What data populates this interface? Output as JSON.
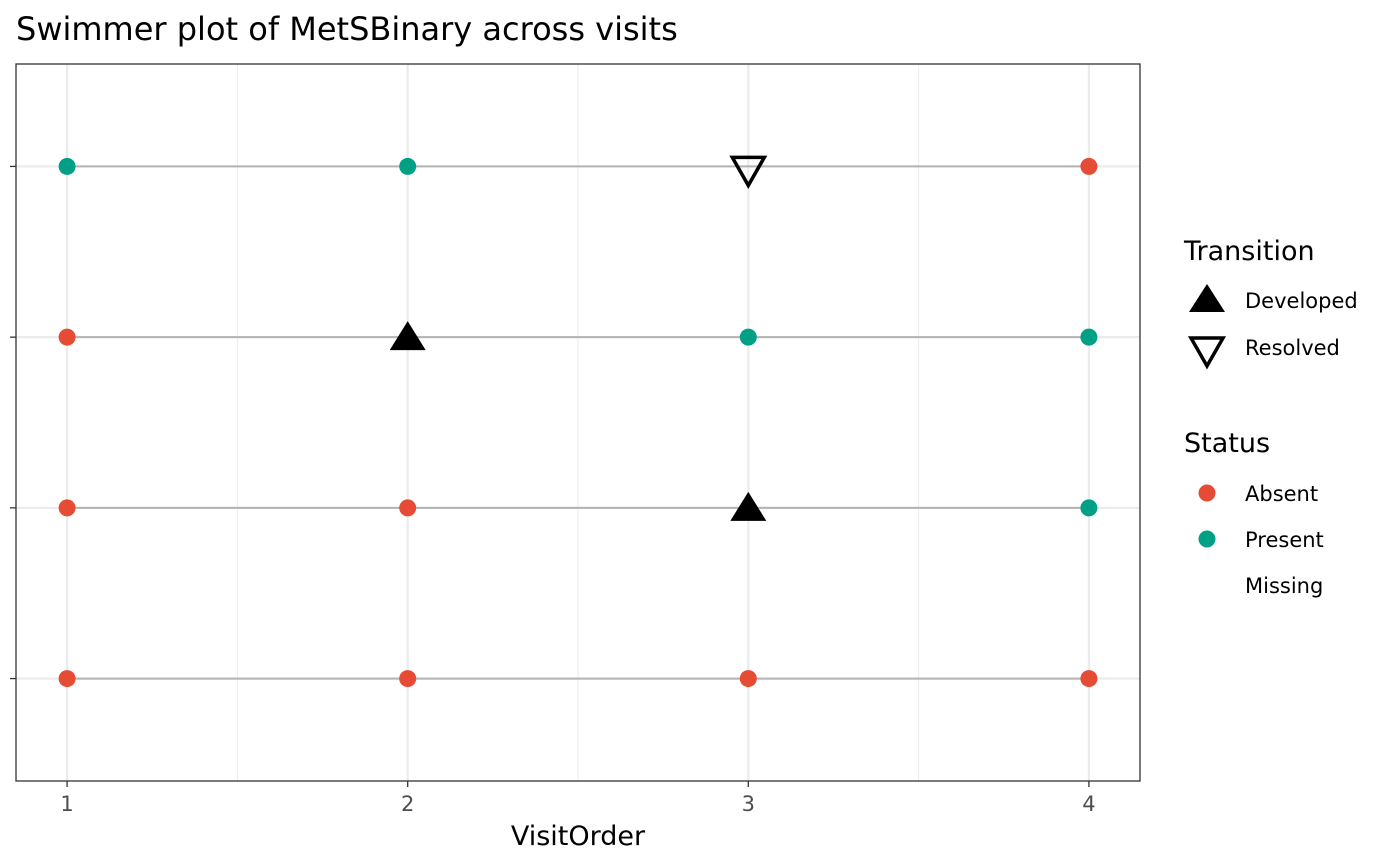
{
  "chart_data": {
    "type": "scatter",
    "title": "Swimmer plot of MetSBinary across visits",
    "xlabel": "VisitOrder",
    "ylabel": "",
    "x_ticks": [
      1,
      2,
      3,
      4
    ],
    "xlim": [
      0.85,
      4.15
    ],
    "grid": true,
    "legend_position": "right",
    "subjects": [
      {
        "visits": [
          1,
          2,
          3,
          4
        ],
        "status": [
          "Absent",
          "Absent",
          "Absent",
          "Absent"
        ],
        "transitions": []
      },
      {
        "visits": [
          1,
          2,
          3,
          4
        ],
        "status": [
          "Absent",
          "Absent",
          "Developed",
          "Present"
        ],
        "transitions": [
          {
            "visit": 3,
            "type": "Developed"
          }
        ]
      },
      {
        "visits": [
          1,
          2,
          3,
          4
        ],
        "status": [
          "Absent",
          "Developed",
          "Present",
          "Present"
        ],
        "transitions": [
          {
            "visit": 2,
            "type": "Developed"
          }
        ]
      },
      {
        "visits": [
          1,
          2,
          3,
          4
        ],
        "status": [
          "Present",
          "Present",
          "Resolved",
          "Absent"
        ],
        "transitions": [
          {
            "visit": 3,
            "type": "Resolved"
          }
        ]
      }
    ],
    "legend": {
      "transition": {
        "title": "Transition",
        "items": [
          {
            "label": "Developed",
            "shape": "filled-triangle-up"
          },
          {
            "label": "Resolved",
            "shape": "open-triangle-down"
          }
        ]
      },
      "status": {
        "title": "Status",
        "items": [
          {
            "label": "Absent",
            "color": "#E64B35"
          },
          {
            "label": "Present",
            "color": "#00A087"
          },
          {
            "label": "Missing",
            "color": null
          }
        ]
      }
    },
    "colors": {
      "Absent": "#E64B35",
      "Present": "#00A087",
      "line": "#b3b3b3",
      "grid": "#ebebeb",
      "panel_border": "#333333"
    }
  }
}
